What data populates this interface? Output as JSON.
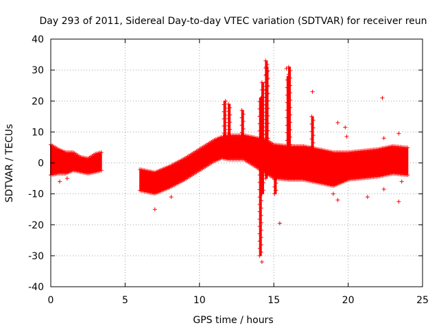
{
  "chart_data": {
    "type": "scatter",
    "title": "Day 293 of 2011, Sidereal Day-to-day VTEC variation (SDTVAR) for receiver reun",
    "xlabel": "GPS time / hours",
    "ylabel": "SDTVAR / TECUs",
    "xlim": [
      0,
      25
    ],
    "ylim": [
      -40,
      40
    ],
    "xticks": [
      0,
      5,
      10,
      15,
      20,
      25
    ],
    "yticks": [
      -40,
      -30,
      -20,
      -10,
      0,
      10,
      20,
      30,
      40
    ],
    "grid": true,
    "marker": "+",
    "color": "#ff0000",
    "series": [
      {
        "name": "SDTVAR",
        "band_segments": [
          {
            "x": [
              0,
              0.5,
              1.0,
              1.5,
              2.0,
              2.5,
              3.0,
              3.4
            ],
            "center": [
              1.0,
              0.5,
              0.0,
              0.5,
              -0.5,
              -1.0,
              0.0,
              0.5
            ],
            "halfwidth": [
              4.5,
              3.5,
              3.0,
              2.5,
              2.0,
              2.0,
              2.5,
              2.5
            ]
          },
          {
            "x": [
              6.0,
              7.0,
              8.0,
              9.0,
              10.0,
              11.0,
              11.5,
              12.0,
              13.0,
              13.5,
              14.5,
              15.0,
              16.0,
              17.0,
              18.0,
              19.0,
              20.0,
              21.0,
              22.0,
              23.0,
              24.0
            ],
            "center": [
              -5.5,
              -6.5,
              -4.5,
              -2.0,
              1.0,
              4.0,
              5.0,
              5.0,
              5.0,
              4.0,
              2.0,
              0.5,
              0.0,
              0.0,
              -1.0,
              -2.0,
              -1.0,
              -0.5,
              0.0,
              1.0,
              0.5
            ],
            "halfwidth": [
              3.0,
              3.0,
              3.0,
              3.0,
              3.0,
              3.0,
              3.0,
              3.5,
              3.5,
              4.0,
              5.0,
              5.0,
              5.0,
              5.0,
              5.0,
              5.0,
              4.0,
              4.0,
              4.0,
              4.0,
              4.0
            ]
          }
        ],
        "spikes": [
          {
            "x": 14.1,
            "ymin": -30,
            "ymax": 21
          },
          {
            "x": 14.25,
            "ymin": -10,
            "ymax": 26
          },
          {
            "x": 14.5,
            "ymin": -5,
            "ymax": 33
          },
          {
            "x": 14.55,
            "ymin": -3,
            "ymax": 31
          },
          {
            "x": 15.1,
            "ymin": -10,
            "ymax": 5
          },
          {
            "x": 15.95,
            "ymin": 0,
            "ymax": 28
          },
          {
            "x": 16.05,
            "ymin": 0,
            "ymax": 31
          },
          {
            "x": 17.6,
            "ymin": -2,
            "ymax": 15
          },
          {
            "x": 11.7,
            "ymin": 5,
            "ymax": 20
          },
          {
            "x": 12.0,
            "ymin": 5,
            "ymax": 19
          },
          {
            "x": 12.9,
            "ymin": 5,
            "ymax": 17
          }
        ],
        "outliers": [
          {
            "x": 0.6,
            "y": -6
          },
          {
            "x": 1.1,
            "y": -5
          },
          {
            "x": 7.0,
            "y": -15
          },
          {
            "x": 8.1,
            "y": -11
          },
          {
            "x": 11.2,
            "y": 2
          },
          {
            "x": 12.6,
            "y": 2
          },
          {
            "x": 14.2,
            "y": -32
          },
          {
            "x": 15.4,
            "y": -19.5
          },
          {
            "x": 15.85,
            "y": 30.5
          },
          {
            "x": 17.6,
            "y": 23
          },
          {
            "x": 19.3,
            "y": 13
          },
          {
            "x": 19.8,
            "y": 11.5
          },
          {
            "x": 19.9,
            "y": 8.5
          },
          {
            "x": 19.3,
            "y": -12
          },
          {
            "x": 19.0,
            "y": -10
          },
          {
            "x": 21.3,
            "y": -11
          },
          {
            "x": 22.3,
            "y": 21
          },
          {
            "x": 22.4,
            "y": 8
          },
          {
            "x": 22.4,
            "y": -8.5
          },
          {
            "x": 23.4,
            "y": 9.5
          },
          {
            "x": 23.4,
            "y": -12.5
          },
          {
            "x": 23.6,
            "y": -6
          }
        ]
      }
    ]
  }
}
